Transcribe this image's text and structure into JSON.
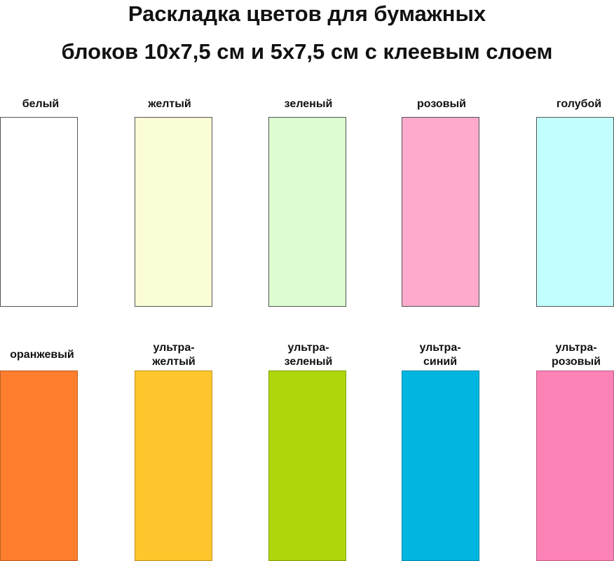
{
  "title": {
    "line1": "Раскладка цветов для бумажных",
    "line2": "блоков 10х7,5 см и 5х7,5 см с клеевым слоем"
  },
  "swatches_row1": [
    {
      "label": "белый",
      "color": "#ffffff"
    },
    {
      "label": "желтый",
      "color": "#fafdd5"
    },
    {
      "label": "зеленый",
      "color": "#dcfdd0"
    },
    {
      "label": "розовый",
      "color": "#fdaacc"
    },
    {
      "label": "голубой",
      "color": "#c2fefe"
    }
  ],
  "swatches_row2": [
    {
      "label": "оранжевый",
      "color": "#fe7e2e"
    },
    {
      "label": "ультра-\nжелтый",
      "color": "#fec62c"
    },
    {
      "label": "ультра-\nзеленый",
      "color": "#aed60a"
    },
    {
      "label": "ультра-\nсиний",
      "color": "#00b6e0"
    },
    {
      "label": "ультра-\nрозовый",
      "color": "#fd82b6"
    }
  ]
}
